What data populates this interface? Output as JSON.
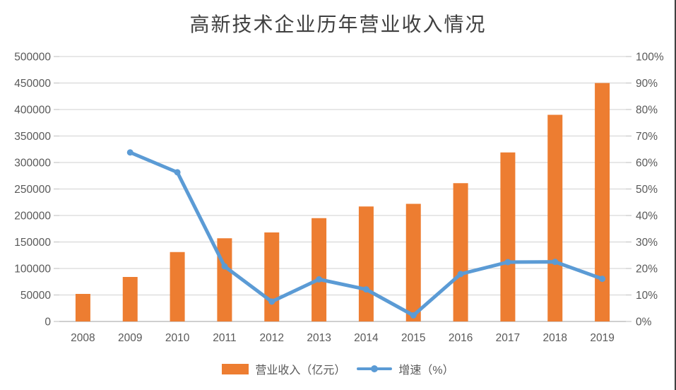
{
  "chart_data": {
    "type": "combo",
    "title": "高新技术企业历年营业收入情况",
    "categories": [
      "2008",
      "2009",
      "2010",
      "2011",
      "2012",
      "2013",
      "2014",
      "2015",
      "2016",
      "2017",
      "2018",
      "2019"
    ],
    "series": [
      {
        "name": "营业收入（亿元）",
        "type": "bar",
        "axis": "left",
        "color": "#ED7D31",
        "values": [
          52000,
          84000,
          131000,
          157000,
          168000,
          195000,
          217000,
          222000,
          261000,
          319000,
          390000,
          450000
        ]
      },
      {
        "name": "增速（%）",
        "type": "line",
        "axis": "right",
        "color": "#5B9BD5",
        "values": [
          null,
          63.8,
          56.3,
          20.8,
          7.5,
          15.9,
          12.1,
          2.3,
          17.9,
          22.4,
          22.5,
          16.1
        ]
      }
    ],
    "left_axis": {
      "min": 0,
      "max": 500000,
      "step": 50000,
      "tick_labels": [
        "0",
        "50000",
        "100000",
        "150000",
        "200000",
        "250000",
        "300000",
        "350000",
        "400000",
        "450000",
        "500000"
      ]
    },
    "right_axis": {
      "min": 0,
      "max": 100,
      "step": 10,
      "suffix": "%",
      "tick_labels": [
        "0%",
        "10%",
        "20%",
        "30%",
        "40%",
        "50%",
        "60%",
        "70%",
        "80%",
        "90%",
        "100%"
      ]
    },
    "grid": true,
    "legend_position": "bottom"
  },
  "colors": {
    "bar": "#ED7D31",
    "line": "#5B9BD5",
    "gridline": "#D9D9D9",
    "axis_line": "#BFBFBF",
    "tick": "#C6C6C6",
    "axis_text": "#595959",
    "title_text": "#404040",
    "right_border": "#404040"
  }
}
